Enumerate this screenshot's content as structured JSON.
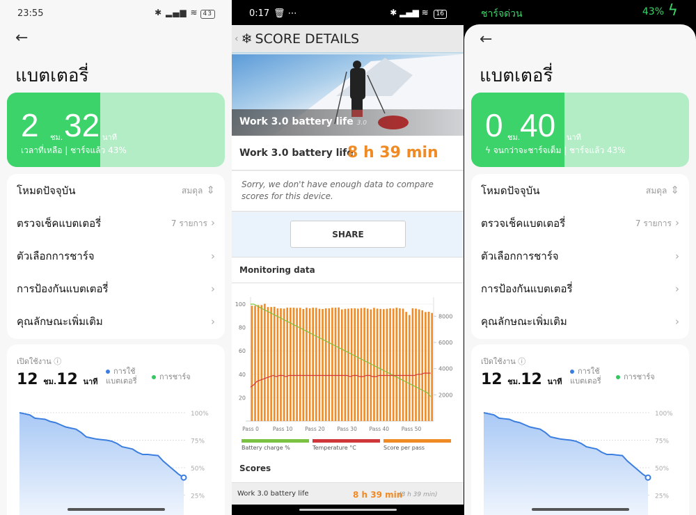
{
  "left_screen": {
    "status": {
      "time": "23:55",
      "icons": [
        "chat-icon",
        "more-icon",
        "bluetooth-icon",
        "signal-icon",
        "wifi-icon"
      ],
      "battery": "43"
    },
    "title": "แบตเตอรี่",
    "hero": {
      "hours": "2",
      "hours_unit": "ชม.",
      "minutes": "32",
      "minutes_unit": "นาที",
      "subtitle": "เวลาที่เหลือ | ชาร์จแล้ว 43%",
      "charge_percent": 43
    },
    "menu": [
      {
        "label": "โหมดปัจจุบัน",
        "value": "สมดุล",
        "icon": "updown-icon"
      },
      {
        "label": "ตรวจเช็คแบตเตอรี่",
        "value": "7 รายการ",
        "icon": "chevron-right-icon"
      },
      {
        "label": "ตัวเลือกการชาร์จ",
        "value": "",
        "icon": "chevron-right-icon"
      },
      {
        "label": "การป้องกันแบตเตอรี่",
        "value": "",
        "icon": "chevron-right-icon"
      },
      {
        "label": "คุณลักษณะเพิ่มเติม",
        "value": "",
        "icon": "chevron-right-icon"
      }
    ],
    "usage": {
      "label": "เปิดใช้งาน",
      "hours": "12",
      "hours_unit": "ชม.",
      "minutes": "12",
      "minutes_unit": "นาที",
      "legend_usage": "การใช้ แบตเตอรี่",
      "legend_charge": "การชาร์จ"
    }
  },
  "usage_chart": {
    "type": "area",
    "y_ticks": [
      "100%",
      "75%",
      "50%",
      "25%"
    ],
    "values": [
      100,
      99,
      98,
      95,
      94.5,
      94,
      92,
      91,
      89,
      87,
      86,
      85,
      82,
      78,
      77,
      76,
      75.5,
      75,
      74,
      72,
      69,
      68,
      67,
      64,
      62,
      62,
      61.5,
      61,
      56,
      52,
      48,
      44,
      41
    ],
    "colors": {
      "line": "#3b7ee0",
      "usage": "#3b7ee0",
      "charge": "#35c860"
    }
  },
  "middle_screen": {
    "status": {
      "time": "0:17",
      "icons": [
        "trash-icon",
        "more-icon",
        "bluetooth-icon",
        "signal-icon",
        "wifi-icon"
      ],
      "battery": "16"
    },
    "header": "SCORE DETAILS",
    "hero_caption": "Work 3.0 battery life",
    "hero_version": "3.0",
    "score_label": "Work 3.0 battery life",
    "score_value": "8 h 39 min",
    "sorry": "Sorry, we don't have enough data to compare scores for this device.",
    "share": "SHARE",
    "monitoring_title": "Monitoring data",
    "scores_title": "Scores",
    "scores_row": {
      "label": "Work 3.0 battery life",
      "value": "8 h 39 min",
      "detail": "(8 h 39 min)"
    },
    "accent": "#f08a24"
  },
  "chart_data": {
    "type": "bar",
    "x_ticks": [
      "Pass 0",
      "Pass 10",
      "Pass 20",
      "Pass 30",
      "Pass 40",
      "Pass 50"
    ],
    "y_left_ticks": [
      "20",
      "40",
      "60",
      "80",
      "100"
    ],
    "y_right_ticks": [
      "2000",
      "4000",
      "6000",
      "8000"
    ],
    "ylim_left": [
      0,
      110
    ],
    "ylim_right": [
      0,
      9800
    ],
    "legend": [
      "Battery charge %",
      "Temperature °C",
      "Score per pass"
    ],
    "colors": [
      "#7cc242",
      "#d0373a",
      "#f08a24"
    ],
    "series": [
      {
        "name": "Score per pass",
        "values": [
          8800,
          8800,
          8850,
          8850,
          8950,
          8700,
          8700,
          8720,
          8600,
          8600,
          8580,
          8650,
          8650,
          8650,
          8630,
          8640,
          8550,
          8650,
          8600,
          8650,
          8640,
          8570,
          8550,
          8600,
          8600,
          8650,
          8650,
          8670,
          8520,
          8560,
          8580,
          8600,
          8600,
          8580,
          8620,
          8640,
          8580,
          8520,
          8640,
          8580,
          8560,
          8540,
          8570,
          8600,
          8590,
          8650,
          8600,
          8580,
          8330,
          8090,
          8600,
          8580,
          8520,
          8450,
          8320,
          8340,
          8250
        ]
      },
      {
        "name": "Battery charge %",
        "values": [
          100,
          100,
          98.5,
          97,
          95.6,
          94.2,
          92.8,
          91.4,
          90,
          88.6,
          87.2,
          85.8,
          84.4,
          83,
          81.6,
          80.2,
          78.8,
          77.4,
          76,
          74.6,
          73.2,
          71.8,
          70.4,
          69,
          67.6,
          66.2,
          64.8,
          63.4,
          62,
          60.6,
          59.2,
          57.8,
          56.4,
          55,
          53.6,
          52.2,
          50.8,
          49.4,
          48,
          46.6,
          45.2,
          43.8,
          42.4,
          41,
          39.6,
          38.2,
          36.8,
          35.4,
          34,
          32.6,
          31.2,
          29.8,
          28.4,
          27,
          25.6,
          24.2,
          21
        ]
      },
      {
        "name": "Temperature °C",
        "values": [
          29,
          31,
          34,
          35,
          36,
          37,
          38,
          39,
          38,
          39,
          39,
          38,
          39,
          39,
          39,
          39,
          39,
          39,
          39,
          39,
          39,
          39,
          39,
          39,
          39,
          39,
          39,
          39,
          39,
          39,
          39,
          38,
          39,
          39,
          38,
          38,
          39,
          39,
          38,
          38,
          39,
          39,
          39,
          39,
          39,
          39,
          39,
          39,
          39,
          39,
          39,
          39,
          40,
          40,
          41,
          41,
          41
        ]
      }
    ]
  },
  "right_screen": {
    "status": {
      "charging_label": "ชาร์จด่วน",
      "battery": "43%",
      "icon": "lightning-icon"
    },
    "title": "แบตเตอรี่",
    "hero": {
      "hours": "0",
      "hours_unit": "ชม.",
      "minutes": "40",
      "minutes_unit": "นาที",
      "subtitle": "จนกว่าจะชาร์จเต็ม | ชาร์จแล้ว 43%",
      "charge_percent": 43
    },
    "menu": [
      {
        "label": "โหมดปัจจุบัน",
        "value": "สมดุล"
      },
      {
        "label": "ตรวจเช็คแบตเตอรี่",
        "value": "7 รายการ"
      },
      {
        "label": "ตัวเลือกการชาร์จ",
        "value": ""
      },
      {
        "label": "การป้องกันแบตเตอรี่",
        "value": ""
      },
      {
        "label": "คุณลักษณะเพิ่มเติม",
        "value": ""
      }
    ],
    "usage": {
      "label": "เปิดใช้งาน",
      "hours": "12",
      "hours_unit": "ชม.",
      "minutes": "12",
      "minutes_unit": "นาที",
      "legend_usage": "การใช้ แบตเตอรี่",
      "legend_charge": "การชาร์จ"
    }
  }
}
